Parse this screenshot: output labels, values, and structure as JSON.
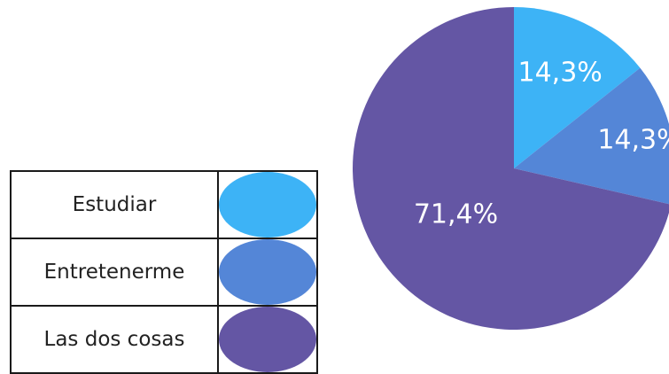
{
  "chart_data": {
    "type": "pie",
    "categories": [
      "Estudiar",
      "Entretenerme",
      "Las dos cosas"
    ],
    "values": [
      14.3,
      14.3,
      71.4
    ],
    "labels": [
      "14,3%",
      "14,3%",
      "71,4%"
    ],
    "colors": [
      "#3db3f6",
      "#5486d7",
      "#6456a4"
    ],
    "start_angle_deg": 0,
    "direction": "clockwise",
    "legend_position": "left"
  }
}
